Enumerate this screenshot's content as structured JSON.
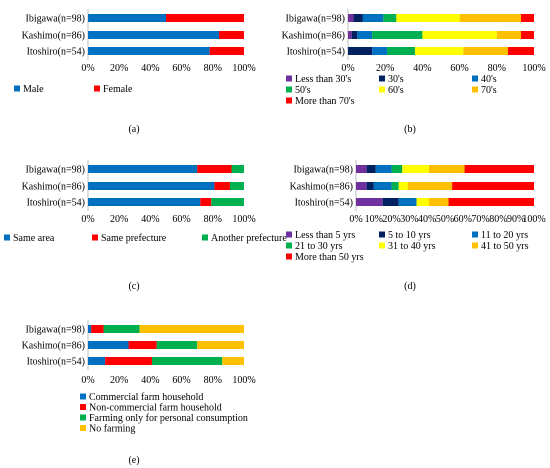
{
  "palette": {
    "blue": "#0070C0",
    "red": "#FF0000",
    "green": "#00B050",
    "purple": "#7030A0",
    "navy": "#002060",
    "yellow": "#FFFF00",
    "orange": "#FFC000",
    "axis": "#BFBFBF"
  },
  "chart_data": [
    {
      "id": "a",
      "panel_label": "(a)",
      "type": "bar",
      "orientation": "horizontal",
      "stacked": true,
      "categories": [
        "Ibigawa(n=98)",
        "Kashimo(n=86)",
        "Itoshiro(n=54)"
      ],
      "xlim": [
        0,
        100
      ],
      "x_ticks": [
        "0%",
        "20%",
        "40%",
        "60%",
        "80%",
        "100%"
      ],
      "legend_position": "bottom",
      "legend_columns": 2,
      "series": [
        {
          "name": "Male",
          "color": "#0070C0",
          "values": [
            50,
            84,
            78
          ]
        },
        {
          "name": "Female",
          "color": "#FF0000",
          "values": [
            50,
            16,
            22
          ]
        }
      ]
    },
    {
      "id": "b",
      "panel_label": "(b)",
      "type": "bar",
      "orientation": "horizontal",
      "stacked": true,
      "categories": [
        "Ibigawa(n=98)",
        "Kashimo(n=86)",
        "Itoshiro(n=54)"
      ],
      "xlim": [
        0,
        100
      ],
      "x_ticks": [
        "0%",
        "20%",
        "40%",
        "60%",
        "80%",
        "100%"
      ],
      "legend_position": "bottom",
      "legend_columns": 3,
      "series": [
        {
          "name": "Less than 30's",
          "color": "#7030A0",
          "values": [
            3,
            2,
            0
          ]
        },
        {
          "name": "30's",
          "color": "#002060",
          "values": [
            5,
            3,
            13
          ]
        },
        {
          "name": "40's",
          "color": "#0070C0",
          "values": [
            11,
            8,
            8
          ]
        },
        {
          "name": "50's",
          "color": "#00B050",
          "values": [
            7,
            27,
            15
          ]
        },
        {
          "name": "60's",
          "color": "#FFFF00",
          "values": [
            34,
            40,
            26
          ]
        },
        {
          "name": "70's",
          "color": "#FFC000",
          "values": [
            33,
            13,
            24
          ]
        },
        {
          "name": "More than 70's",
          "color": "#FF0000",
          "values": [
            7,
            7,
            14
          ]
        }
      ]
    },
    {
      "id": "c",
      "panel_label": "(c)",
      "type": "bar",
      "orientation": "horizontal",
      "stacked": true,
      "categories": [
        "Ibigawa(n=98)",
        "Kashimo(n=86)",
        "Itoshiro(n=54)"
      ],
      "xlim": [
        0,
        100
      ],
      "x_ticks": [
        "0%",
        "20%",
        "40%",
        "60%",
        "80%",
        "100%"
      ],
      "legend_position": "bottom",
      "legend_columns": 3,
      "series": [
        {
          "name": "Same area",
          "color": "#0070C0",
          "values": [
            70,
            81,
            72
          ]
        },
        {
          "name": "Same prefecture",
          "color": "#FF0000",
          "values": [
            22,
            10,
            7
          ]
        },
        {
          "name": "Another prefecture",
          "color": "#00B050",
          "values": [
            8,
            9,
            21
          ]
        }
      ]
    },
    {
      "id": "d",
      "panel_label": "(d)",
      "type": "bar",
      "orientation": "horizontal",
      "stacked": true,
      "categories": [
        "Ibigawa(n=98)",
        "Kashimo(n=86)",
        "Itoshiro(n=54)"
      ],
      "xlim": [
        0,
        100
      ],
      "x_ticks": [
        "0%",
        "10%",
        "20%",
        "30%",
        "40%",
        "50%",
        "60%",
        "70%",
        "80%",
        "90%",
        "100%"
      ],
      "legend_position": "bottom",
      "legend_columns": 3,
      "series": [
        {
          "name": "Less than 5 yrs",
          "color": "#7030A0",
          "values": [
            6,
            6,
            15
          ]
        },
        {
          "name": "5 to 10 yrs",
          "color": "#002060",
          "values": [
            5,
            4,
            9
          ]
        },
        {
          "name": "11 to 20 yrs",
          "color": "#0070C0",
          "values": [
            9,
            10,
            10
          ]
        },
        {
          "name": "21 to 30 yrs",
          "color": "#00B050",
          "values": [
            6,
            4,
            0
          ]
        },
        {
          "name": "31 to 40 yrs",
          "color": "#FFFF00",
          "values": [
            15,
            5,
            7
          ]
        },
        {
          "name": "41 to 50 yrs",
          "color": "#FFC000",
          "values": [
            20,
            25,
            11
          ]
        },
        {
          "name": "More than 50 yrs",
          "color": "#FF0000",
          "values": [
            39,
            46,
            48
          ]
        }
      ]
    },
    {
      "id": "e",
      "panel_label": "(e)",
      "type": "bar",
      "orientation": "horizontal",
      "stacked": true,
      "categories": [
        "Ibigawa(n=98)",
        "Kashimo(n=86)",
        "Itoshiro(n=54)"
      ],
      "xlim": [
        0,
        100
      ],
      "x_ticks": [
        "0%",
        "20%",
        "40%",
        "60%",
        "80%",
        "100%"
      ],
      "legend_position": "bottom",
      "legend_columns": 1,
      "series": [
        {
          "name": "Commercial farm household",
          "color": "#0070C0",
          "values": [
            2,
            26,
            11
          ]
        },
        {
          "name": "Non-commercial farm household",
          "color": "#FF0000",
          "values": [
            8,
            18,
            30
          ]
        },
        {
          "name": "Farming only for personal consumption",
          "color": "#00B050",
          "values": [
            23,
            26,
            45
          ]
        },
        {
          "name": "No farming",
          "color": "#FFC000",
          "values": [
            67,
            30,
            14
          ]
        }
      ]
    }
  ]
}
